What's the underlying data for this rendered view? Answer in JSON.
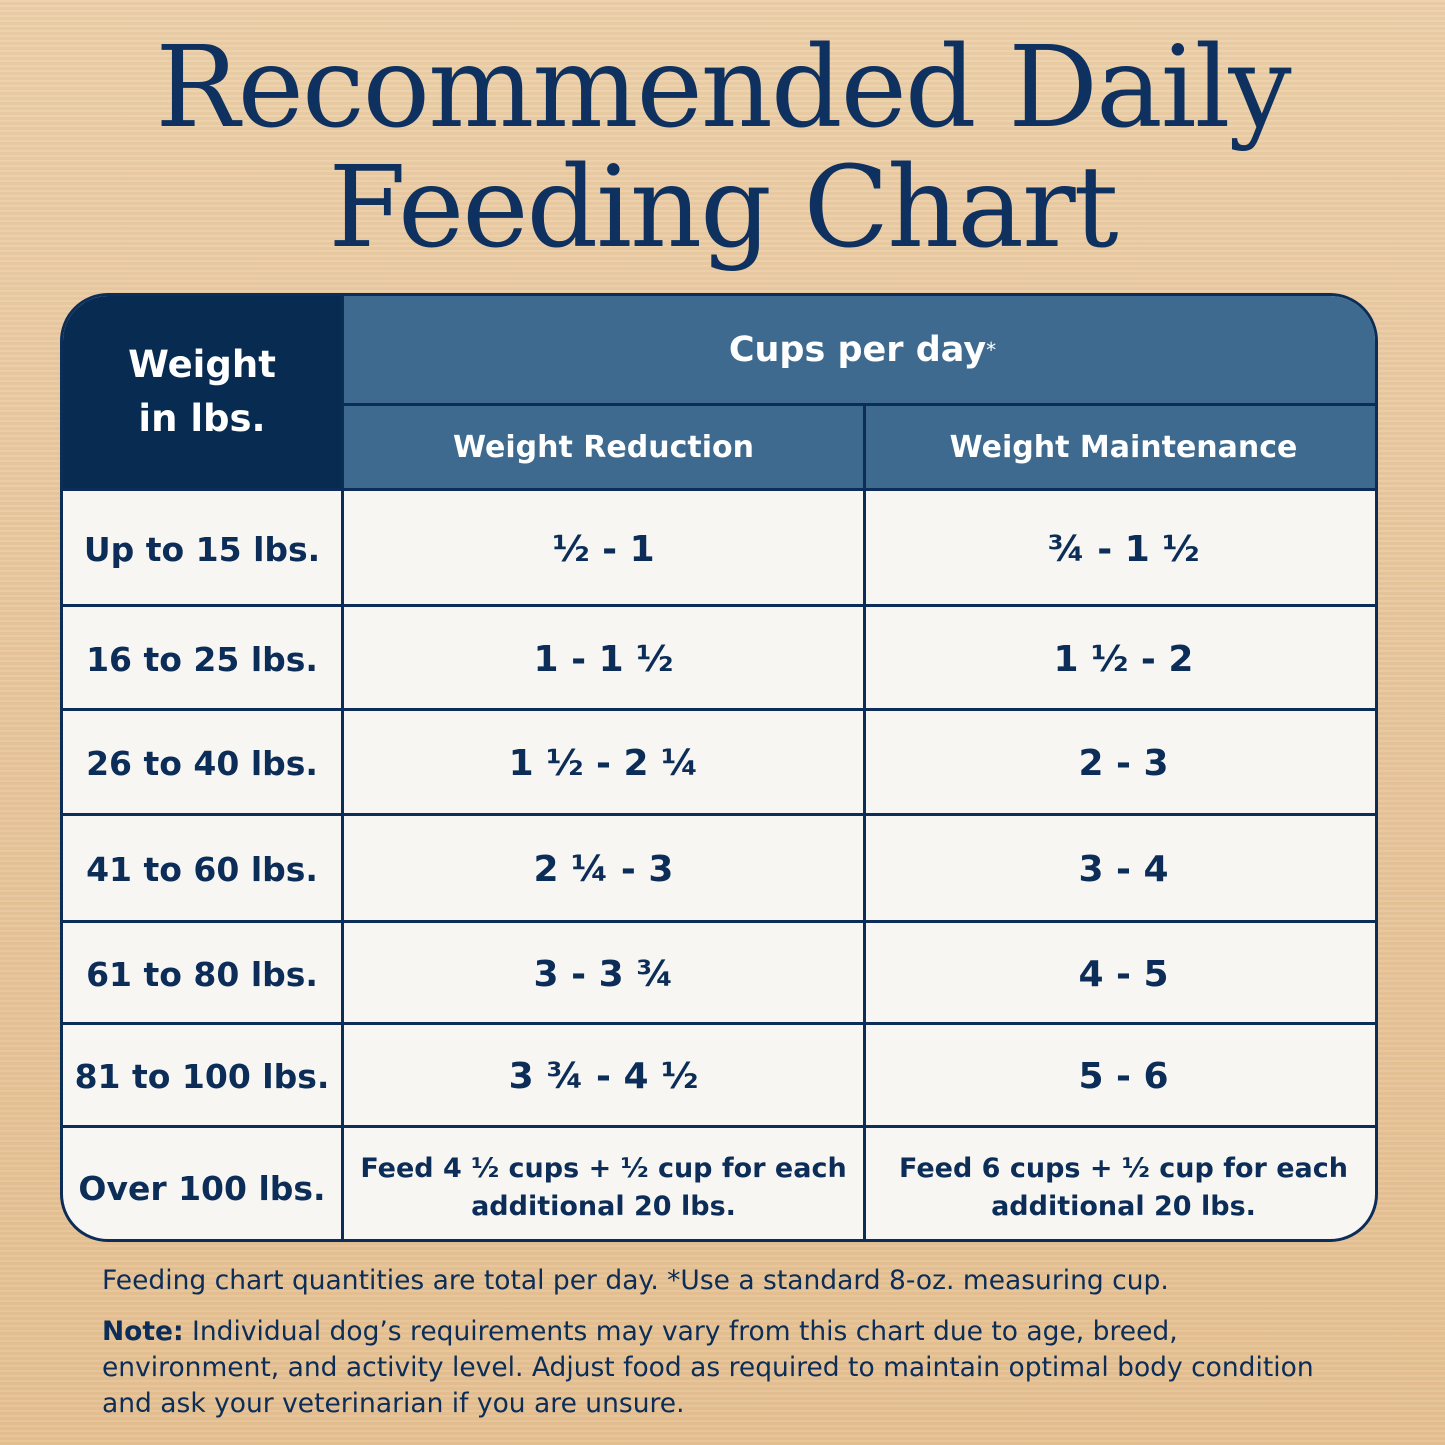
{
  "title": {
    "line1": "Recommended Daily",
    "line2": "Feeding Chart"
  },
  "table": {
    "header_weight": "Weight in lbs.",
    "header_cups": "Cups per day",
    "header_cups_mark": "*",
    "col_reduction": "Weight Reduction",
    "col_maintenance": "Weight Maintenance",
    "rows": [
      {
        "weight": "Up to 15 lbs.",
        "reduction": "½ - 1",
        "maintenance": "¾ -  1 ½"
      },
      {
        "weight": "16 to 25 lbs.",
        "reduction": "1 - 1 ½",
        "maintenance": "1 ½ - 2"
      },
      {
        "weight": "26 to 40 lbs.",
        "reduction": "1 ½ - 2 ¼",
        "maintenance": "2 - 3"
      },
      {
        "weight": "41 to 60 lbs.",
        "reduction": "2 ¼ - 3",
        "maintenance": "3 - 4"
      },
      {
        "weight": "61 to 80 lbs.",
        "reduction": "3 - 3 ¾",
        "maintenance": "4 - 5"
      },
      {
        "weight": "81 to 100 lbs.",
        "reduction": "3 ¾ - 4 ½",
        "maintenance": "5 - 6"
      },
      {
        "weight": "Over 100 lbs.",
        "reduction": "Feed 4 ½ cups + ½ cup for each additional 20 lbs.",
        "maintenance": "Feed 6 cups + ½ cup for each additional 20 lbs."
      }
    ]
  },
  "footer": {
    "line1": "Feeding chart quantities are total per day. *Use a standard 8-oz. measuring cup.",
    "note_label": "Note:",
    "note_text": " Individual dog’s requirements may vary from this chart due to age, breed, environment, and activity level. Adjust food as required to maintain optimal body condition and ask your veterinarian if you are unsure."
  },
  "colors": {
    "navy": "#082b52",
    "header_blue": "#3d6a8e",
    "cell_bg": "#f8f6f2",
    "background": "#e9c89e"
  }
}
